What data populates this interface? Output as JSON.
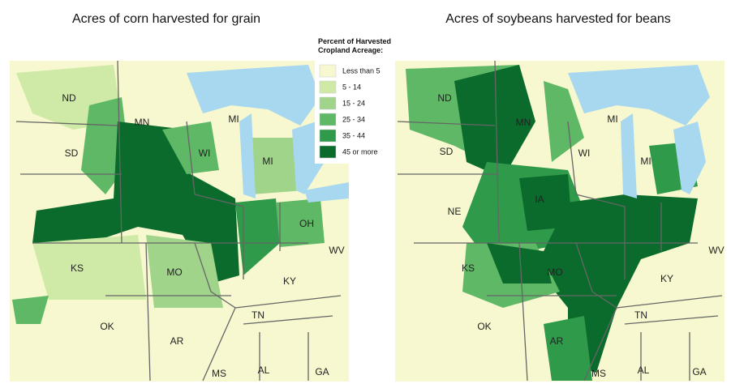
{
  "maps": [
    {
      "title": "Acres of corn harvested for grain",
      "labels": [
        "ND",
        "MN",
        "MI",
        "SD",
        "WI",
        "MI",
        "OH",
        "KS",
        "MO",
        "KY",
        "WV",
        "OK",
        "AR",
        "TN",
        "MS",
        "AL",
        "GA"
      ]
    },
    {
      "title": "Acres of soybeans harvested for beans",
      "labels": [
        "ND",
        "MN",
        "MI",
        "SD",
        "WI",
        "MI",
        "IA",
        "NE",
        "KS",
        "MO",
        "KY",
        "WV",
        "OK",
        "TN",
        "AR",
        "MS",
        "AL",
        "GA"
      ]
    }
  ],
  "legend": {
    "title": [
      "Percent of Harvested",
      "Cropland Acreage:"
    ],
    "items": [
      {
        "label": "Less than 5",
        "color": "#f7f8cf"
      },
      {
        "label": "5 - 14",
        "color": "#cfe9a6"
      },
      {
        "label": "15 - 24",
        "color": "#9fd48a"
      },
      {
        "label": "25 - 34",
        "color": "#5fb866"
      },
      {
        "label": "35 - 44",
        "color": "#2e9a4a"
      },
      {
        "label": "45 or more",
        "color": "#0b6b2c"
      }
    ]
  }
}
